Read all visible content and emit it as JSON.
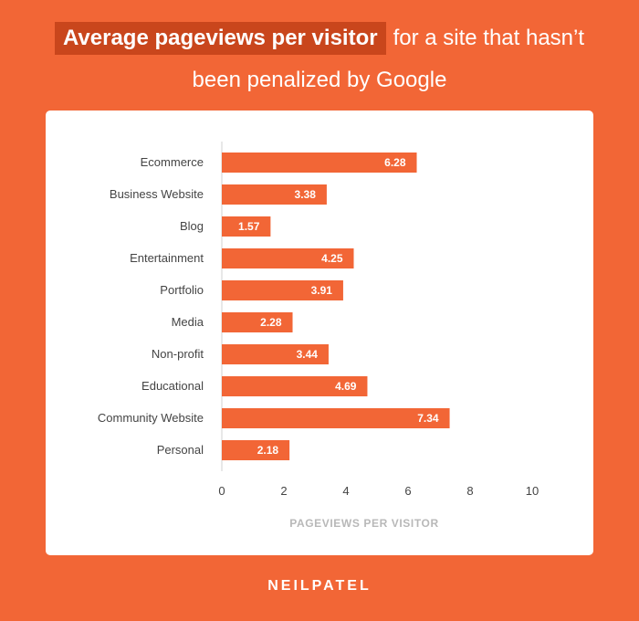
{
  "header": {
    "title_highlight": "Average pageviews per visitor",
    "title_rest": "for a site that hasn’t",
    "title_line2": "been penalized by Google"
  },
  "brand": "NEILPATEL",
  "colors": {
    "background": "#f26636",
    "bar": "#f26636",
    "highlight": "#c9461c",
    "card": "#ffffff"
  },
  "chart_data": {
    "type": "bar",
    "orientation": "horizontal",
    "title": "Average pageviews per visitor for a site that hasn’t been penalized by Google",
    "xlabel": "PAGEVIEWS PER VISITOR",
    "ylabel": "",
    "categories": [
      "Ecommerce",
      "Business Website",
      "Blog",
      "Entertainment",
      "Portfolio",
      "Media",
      "Non-profit",
      "Educational",
      "Community Website",
      "Personal"
    ],
    "values": [
      6.28,
      3.38,
      1.57,
      4.25,
      3.91,
      2.28,
      3.44,
      4.69,
      7.34,
      2.18
    ],
    "xlim": [
      0,
      10
    ],
    "xticks": [
      0,
      2,
      4,
      6,
      8,
      10
    ],
    "grid": false,
    "data_labels": true
  }
}
